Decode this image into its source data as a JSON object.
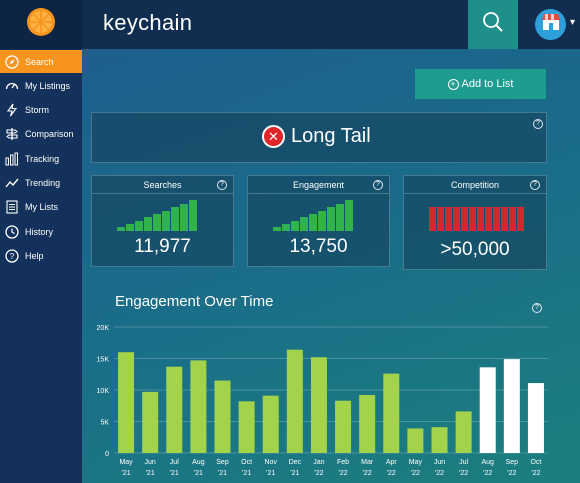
{
  "header": {
    "title": "keychain",
    "dropdown_caret": "▾",
    "logo_icon": "orange-slice-icon",
    "search_icon": "search-icon",
    "avatar_icon": "shop-icon"
  },
  "sidebar": {
    "active_color": "#f7941d",
    "items": [
      {
        "label": "Search",
        "icon": "compass-icon",
        "active": true
      },
      {
        "label": "My Listings",
        "icon": "speedometer-icon",
        "active": false
      },
      {
        "label": "Storm",
        "icon": "lightning-icon",
        "active": false
      },
      {
        "label": "Comparison",
        "icon": "signpost-icon",
        "active": false
      },
      {
        "label": "Tracking",
        "icon": "bar-chart-icon",
        "active": false
      },
      {
        "label": "Trending",
        "icon": "trend-line-icon",
        "active": false
      },
      {
        "label": "My Lists",
        "icon": "list-icon",
        "active": false
      },
      {
        "label": "History",
        "icon": "clock-icon",
        "active": false
      },
      {
        "label": "Help",
        "icon": "question-icon",
        "active": false
      }
    ]
  },
  "actions": {
    "add_to_list": "Add to List"
  },
  "help_mark": "?",
  "tail": {
    "label": "Long Tail",
    "icon": "x-circle-icon",
    "badge_color": "#e0262b",
    "close_symbol": "✕"
  },
  "stats": [
    {
      "title": "Searches",
      "value": "11,977",
      "bar_color": "#2fb34a",
      "bar_levels": [
        0.12,
        0.22,
        0.33,
        0.44,
        0.55,
        0.66,
        0.77,
        0.88,
        1.0
      ]
    },
    {
      "title": "Engagement",
      "value": "13,750",
      "bar_color": "#2fb34a",
      "bar_levels": [
        0.12,
        0.22,
        0.33,
        0.44,
        0.55,
        0.66,
        0.77,
        0.88,
        1.0
      ]
    },
    {
      "title": "Competition",
      "value": ">50,000",
      "bar_color": "#d7262e",
      "bar_levels": [
        1,
        1,
        1,
        1,
        1,
        1,
        1,
        1,
        1,
        1,
        1,
        1
      ]
    }
  ],
  "chart_title": "Engagement Over Time",
  "chart_data": {
    "type": "bar",
    "title": "Engagement Over Time",
    "ylim": [
      0,
      20000
    ],
    "yticks": [
      "0",
      "5K",
      "10K",
      "15K",
      "20K"
    ],
    "grid": true,
    "categories": [
      [
        "May",
        "'21"
      ],
      [
        "Jun",
        "'21"
      ],
      [
        "Jul",
        "'21"
      ],
      [
        "Aug",
        "'21"
      ],
      [
        "Sep",
        "'21"
      ],
      [
        "Oct",
        "'21"
      ],
      [
        "Nov",
        "'21"
      ],
      [
        "Dec",
        "'21"
      ],
      [
        "Jan",
        "'22"
      ],
      [
        "Feb",
        "'22"
      ],
      [
        "Mar",
        "'22"
      ],
      [
        "Apr",
        "'22"
      ],
      [
        "May",
        "'22"
      ],
      [
        "Jun",
        "'22"
      ],
      [
        "Jul",
        "'22"
      ],
      [
        "Aug",
        "'22"
      ],
      [
        "Sep",
        "'22"
      ],
      [
        "Oct",
        "'22"
      ]
    ],
    "values": [
      16000,
      9700,
      13700,
      14700,
      11500,
      8200,
      9100,
      16400,
      15200,
      8300,
      9200,
      12600,
      3900,
      4100,
      6600,
      13600,
      14900,
      11100
    ],
    "bar_colors": [
      "#a3d34a",
      "#a3d34a",
      "#a3d34a",
      "#a3d34a",
      "#a3d34a",
      "#a3d34a",
      "#a3d34a",
      "#a3d34a",
      "#a3d34a",
      "#a3d34a",
      "#a3d34a",
      "#a3d34a",
      "#a3d34a",
      "#a3d34a",
      "#a3d34a",
      "#ffffff",
      "#ffffff",
      "#ffffff"
    ]
  }
}
